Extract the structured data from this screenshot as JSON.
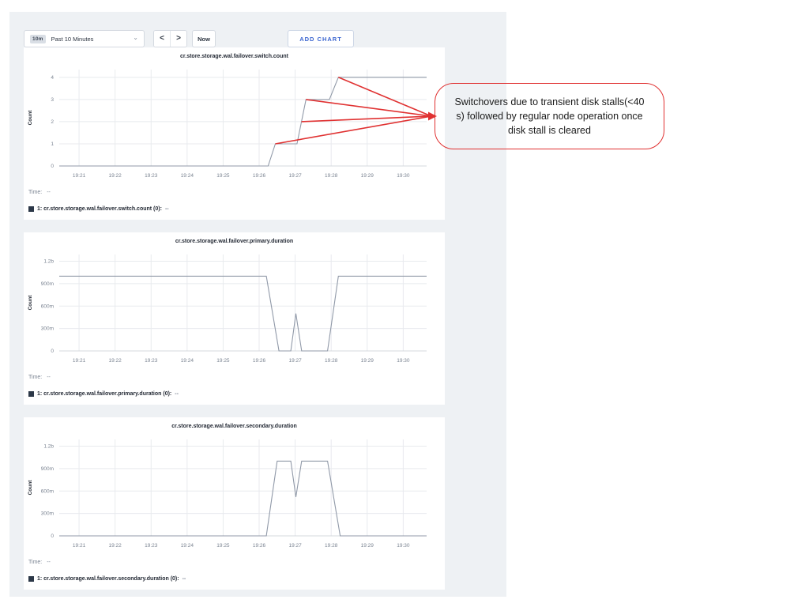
{
  "colors": {
    "panel_bg": "#eef1f4",
    "accent_blue": "#3b66d1",
    "annotation_red": "#e03131",
    "series_line": "#9099a8",
    "legend_swatch": "#2c3848"
  },
  "toolbar": {
    "timeframe_badge": "10m",
    "timeframe_label": "Past 10 Minutes",
    "prev_label": "<",
    "next_label": ">",
    "now_label": "Now",
    "add_chart_label": "ADD CHART"
  },
  "annotation": {
    "text": "Switchovers due to transient disk stalls(<40 s) followed by regular node operation once disk stall is cleared",
    "arrow_anchors": [
      [
        8.2,
        4
      ],
      [
        7.3,
        3
      ],
      [
        7.175,
        2
      ],
      [
        6.45,
        1
      ]
    ],
    "anchor_chart_index": 0
  },
  "charts": [
    {
      "time_label": "Time:",
      "time_value": "--",
      "legend_label": "1: cr.store.storage.wal.failover.switch.count (0):",
      "legend_value": "--",
      "chart_data": {
        "type": "line",
        "title": "cr.store.storage.wal.failover.switch.count",
        "ylabel": "Count",
        "xlim": [
          0.45,
          10.65
        ],
        "ylim": [
          0,
          4.35
        ],
        "grid": true,
        "x_ticks": [
          {
            "v": 1,
            "label": "19:21"
          },
          {
            "v": 2,
            "label": "19:22"
          },
          {
            "v": 3,
            "label": "19:23"
          },
          {
            "v": 4,
            "label": "19:24"
          },
          {
            "v": 5,
            "label": "19:25"
          },
          {
            "v": 6,
            "label": "19:26"
          },
          {
            "v": 7,
            "label": "19:27"
          },
          {
            "v": 8,
            "label": "19:28"
          },
          {
            "v": 9,
            "label": "19:29"
          },
          {
            "v": 10,
            "label": "19:30"
          }
        ],
        "y_ticks": [
          {
            "v": 0,
            "label": "0"
          },
          {
            "v": 1,
            "label": "1"
          },
          {
            "v": 2,
            "label": "2"
          },
          {
            "v": 3,
            "label": "3"
          },
          {
            "v": 4,
            "label": "4"
          }
        ],
        "points": [
          [
            0.45,
            0
          ],
          [
            6.25,
            0
          ],
          [
            6.45,
            1
          ],
          [
            7.05,
            1
          ],
          [
            7.3,
            3
          ],
          [
            7.95,
            3
          ],
          [
            8.2,
            4
          ],
          [
            10.65,
            4
          ]
        ]
      }
    },
    {
      "time_label": "Time:",
      "time_value": "--",
      "legend_label": "1: cr.store.storage.wal.failover.primary.duration (0):",
      "legend_value": "--",
      "chart_data": {
        "type": "line",
        "title": "cr.store.storage.wal.failover.primary.duration",
        "ylabel": "Count",
        "xlim": [
          0.45,
          10.65
        ],
        "ylim": [
          0,
          1.29
        ],
        "grid": true,
        "x_ticks": [
          {
            "v": 1,
            "label": "19:21"
          },
          {
            "v": 2,
            "label": "19:22"
          },
          {
            "v": 3,
            "label": "19:23"
          },
          {
            "v": 4,
            "label": "19:24"
          },
          {
            "v": 5,
            "label": "19:25"
          },
          {
            "v": 6,
            "label": "19:26"
          },
          {
            "v": 7,
            "label": "19:27"
          },
          {
            "v": 8,
            "label": "19:28"
          },
          {
            "v": 9,
            "label": "19:29"
          },
          {
            "v": 10,
            "label": "19:30"
          }
        ],
        "y_ticks": [
          {
            "v": 0,
            "label": "0"
          },
          {
            "v": 0.3,
            "label": "300m"
          },
          {
            "v": 0.6,
            "label": "600m"
          },
          {
            "v": 0.9,
            "label": "900m"
          },
          {
            "v": 1.2,
            "label": "1.2b"
          }
        ],
        "points": [
          [
            0.45,
            1.0
          ],
          [
            6.2,
            1.0
          ],
          [
            6.55,
            0
          ],
          [
            6.88,
            0
          ],
          [
            7.02,
            0.5
          ],
          [
            7.18,
            0
          ],
          [
            7.9,
            0
          ],
          [
            8.2,
            1.0
          ],
          [
            10.65,
            1.0
          ]
        ]
      }
    },
    {
      "time_label": "Time:",
      "time_value": "--",
      "legend_label": "1: cr.store.storage.wal.failover.secondary.duration (0):",
      "legend_value": "--",
      "chart_data": {
        "type": "line",
        "title": "cr.store.storage.wal.failover.secondary.duration",
        "ylabel": "Count",
        "xlim": [
          0.45,
          10.65
        ],
        "ylim": [
          0,
          1.29
        ],
        "grid": true,
        "x_ticks": [
          {
            "v": 1,
            "label": "19:21"
          },
          {
            "v": 2,
            "label": "19:22"
          },
          {
            "v": 3,
            "label": "19:23"
          },
          {
            "v": 4,
            "label": "19:24"
          },
          {
            "v": 5,
            "label": "19:25"
          },
          {
            "v": 6,
            "label": "19:26"
          },
          {
            "v": 7,
            "label": "19:27"
          },
          {
            "v": 8,
            "label": "19:28"
          },
          {
            "v": 9,
            "label": "19:29"
          },
          {
            "v": 10,
            "label": "19:30"
          }
        ],
        "y_ticks": [
          {
            "v": 0,
            "label": "0"
          },
          {
            "v": 0.3,
            "label": "300m"
          },
          {
            "v": 0.6,
            "label": "600m"
          },
          {
            "v": 0.9,
            "label": "900m"
          },
          {
            "v": 1.2,
            "label": "1.2b"
          }
        ],
        "points": [
          [
            0.45,
            0
          ],
          [
            6.2,
            0
          ],
          [
            6.5,
            1.0
          ],
          [
            6.88,
            1.0
          ],
          [
            7.02,
            0.52
          ],
          [
            7.18,
            1.0
          ],
          [
            7.9,
            1.0
          ],
          [
            8.25,
            0
          ],
          [
            10.65,
            0
          ]
        ]
      }
    }
  ]
}
